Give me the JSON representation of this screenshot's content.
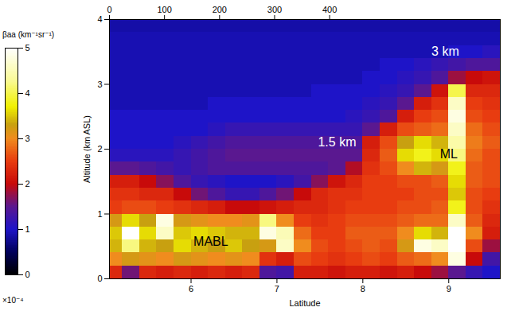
{
  "chart_data": {
    "type": "heatmap",
    "x_label": "Latitude",
    "y_label": "Altitude (km ASL)",
    "xlim": [
      5.05,
      9.6
    ],
    "xticks": [
      6,
      7,
      8,
      9
    ],
    "ylim": [
      0,
      4
    ],
    "yticks": [
      0,
      1,
      2,
      3,
      4
    ],
    "x2lim": [
      0,
      710
    ],
    "x2ticks": [
      0,
      100,
      200,
      300,
      400
    ],
    "x": [
      5.0,
      5.2,
      5.4,
      5.6,
      5.8,
      6.0,
      6.2,
      6.4,
      6.6,
      6.8,
      7.0,
      7.2,
      7.4,
      7.6,
      7.8,
      8.0,
      8.2,
      8.4,
      8.6,
      8.8,
      9.0,
      9.2,
      9.4,
      9.6
    ],
    "y": [
      0,
      0.2,
      0.4,
      0.6,
      0.8,
      1.0,
      1.2,
      1.4,
      1.6,
      1.8,
      2.0,
      2.2,
      2.4,
      2.6,
      2.8,
      3.0,
      3.2,
      3.4,
      3.6,
      3.8,
      4.0
    ],
    "values": [
      [
        2.3,
        1.6,
        2.3,
        2.2,
        2.3,
        2.2,
        2.3,
        2.2,
        2.3,
        1.4,
        1.3,
        2.2,
        2.2,
        2.1,
        2.2,
        2.2,
        2.1,
        2.2,
        2.0,
        1.8,
        1.5,
        1.2,
        1.0
      ],
      [
        3.0,
        3.2,
        3.1,
        3.0,
        3.2,
        3.1,
        3.0,
        3.1,
        3.0,
        2.4,
        2.2,
        2.6,
        2.5,
        2.4,
        2.5,
        2.6,
        2.5,
        2.7,
        2.8,
        3.0,
        4.8,
        2.0,
        1.3
      ],
      [
        3.4,
        4.2,
        3.4,
        3.3,
        3.6,
        3.4,
        3.3,
        3.5,
        3.3,
        3.2,
        4.6,
        3.0,
        2.6,
        2.5,
        2.6,
        2.7,
        2.6,
        3.2,
        4.8,
        4.6,
        5.0,
        2.6,
        1.8
      ],
      [
        3.5,
        5.0,
        3.6,
        4.6,
        3.5,
        3.6,
        3.5,
        3.4,
        3.4,
        4.8,
        4.5,
        2.8,
        2.5,
        2.5,
        2.7,
        2.7,
        2.7,
        3.0,
        3.6,
        3.4,
        5.0,
        3.0,
        2.2
      ],
      [
        3.2,
        3.6,
        3.3,
        4.8,
        3.2,
        3.1,
        3.0,
        3.0,
        3.1,
        4.2,
        3.0,
        2.5,
        2.4,
        2.5,
        2.6,
        2.6,
        2.6,
        2.7,
        2.8,
        2.8,
        4.6,
        2.7,
        2.3
      ],
      [
        2.5,
        2.6,
        2.6,
        2.5,
        2.4,
        2.3,
        2.2,
        2.0,
        2.0,
        2.1,
        2.2,
        2.3,
        2.3,
        2.4,
        2.5,
        2.5,
        2.5,
        2.6,
        2.6,
        2.7,
        3.8,
        2.6,
        2.4
      ],
      [
        2.4,
        2.4,
        2.3,
        2.3,
        2.0,
        1.6,
        1.4,
        1.2,
        1.2,
        1.4,
        1.6,
        2.0,
        2.3,
        2.4,
        2.4,
        2.5,
        2.5,
        2.5,
        2.6,
        2.6,
        3.5,
        2.6,
        2.5
      ],
      [
        2.2,
        2.2,
        2.0,
        1.7,
        1.4,
        1.2,
        1.1,
        1.0,
        1.0,
        1.0,
        1.1,
        1.3,
        1.7,
        2.1,
        2.3,
        2.5,
        2.5,
        2.6,
        2.6,
        2.7,
        3.6,
        2.7,
        2.6
      ],
      [
        1.5,
        1.5,
        1.4,
        1.3,
        1.2,
        1.3,
        1.4,
        1.4,
        1.4,
        1.4,
        1.4,
        1.4,
        1.4,
        1.5,
        1.9,
        2.4,
        2.6,
        3.0,
        3.4,
        3.2,
        3.8,
        2.7,
        2.6
      ],
      [
        1.1,
        1.1,
        1.1,
        1.1,
        1.2,
        1.3,
        1.4,
        1.5,
        1.5,
        1.5,
        1.5,
        1.5,
        1.5,
        1.5,
        1.5,
        2.3,
        2.7,
        3.6,
        3.8,
        3.6,
        4.2,
        2.8,
        2.6
      ],
      [
        1.0,
        1.0,
        1.0,
        1.0,
        1.1,
        1.2,
        1.3,
        1.4,
        1.4,
        1.4,
        1.4,
        1.4,
        1.4,
        1.4,
        1.4,
        2.2,
        2.6,
        3.3,
        3.6,
        3.4,
        4.4,
        2.9,
        2.7
      ],
      [
        1.0,
        1.0,
        1.0,
        1.0,
        1.0,
        1.0,
        1.1,
        1.2,
        1.2,
        1.2,
        1.2,
        1.2,
        1.2,
        1.2,
        1.2,
        1.5,
        2.2,
        2.6,
        2.7,
        2.8,
        4.6,
        2.8,
        2.6
      ],
      [
        1.0,
        1.0,
        1.0,
        1.0,
        1.0,
        1.0,
        1.0,
        1.0,
        1.0,
        1.0,
        1.0,
        1.0,
        1.0,
        1.0,
        1.1,
        1.2,
        1.4,
        2.2,
        2.5,
        2.6,
        4.8,
        2.6,
        2.5
      ],
      [
        0.9,
        0.9,
        0.9,
        0.9,
        0.9,
        0.9,
        1.0,
        1.0,
        1.0,
        1.0,
        1.0,
        1.0,
        1.0,
        1.0,
        1.0,
        1.1,
        1.2,
        1.5,
        2.2,
        2.4,
        4.6,
        2.5,
        2.4
      ],
      [
        0.9,
        0.9,
        0.9,
        0.9,
        0.9,
        0.9,
        0.9,
        0.9,
        0.9,
        0.9,
        0.9,
        0.9,
        1.0,
        1.0,
        1.0,
        1.0,
        1.1,
        1.2,
        1.5,
        2.1,
        4.0,
        2.3,
        2.3
      ],
      [
        0.9,
        0.9,
        0.9,
        0.9,
        0.9,
        0.9,
        0.9,
        0.9,
        0.9,
        0.9,
        0.9,
        0.9,
        0.9,
        0.9,
        0.9,
        1.0,
        1.0,
        1.1,
        1.2,
        1.4,
        1.8,
        2.0,
        2.1
      ],
      [
        0.9,
        0.9,
        0.9,
        0.9,
        0.9,
        0.9,
        0.9,
        0.9,
        0.9,
        0.9,
        0.9,
        0.9,
        0.9,
        0.9,
        0.9,
        0.9,
        1.0,
        1.0,
        1.1,
        1.2,
        1.3,
        1.4,
        1.4
      ],
      [
        0.9,
        0.9,
        0.9,
        0.9,
        0.9,
        0.9,
        0.9,
        0.9,
        0.9,
        0.9,
        0.9,
        0.9,
        0.9,
        0.9,
        0.9,
        0.9,
        0.9,
        0.9,
        0.9,
        0.9,
        1.0,
        1.0,
        1.1
      ],
      [
        0.9,
        0.9,
        0.9,
        0.9,
        0.9,
        0.9,
        0.9,
        0.9,
        0.9,
        0.9,
        0.9,
        0.9,
        0.9,
        0.9,
        0.9,
        0.9,
        0.9,
        0.9,
        0.9,
        0.9,
        0.9,
        0.9,
        0.9
      ],
      [
        0.85,
        0.85,
        0.85,
        0.85,
        0.85,
        0.85,
        0.85,
        0.85,
        0.85,
        0.85,
        0.85,
        0.85,
        0.85,
        0.85,
        0.85,
        0.85,
        0.85,
        0.85,
        0.85,
        0.85,
        0.85,
        0.85,
        0.85
      ]
    ],
    "colorbar": {
      "label": "βaa (km⁻¹sr⁻¹)",
      "range": [
        0,
        5
      ],
      "ticks": [
        0,
        1,
        2,
        3,
        4,
        5
      ],
      "multiplier": "×10⁻⁴"
    },
    "annotations": [
      {
        "text": "MABL",
        "x": 6.23,
        "y": 0.57,
        "color": "#000000"
      },
      {
        "text": "ML",
        "x": 9.0,
        "y": 1.92,
        "color": "#000000"
      },
      {
        "text": "1.5 km",
        "x": 7.7,
        "y": 2.1,
        "color": "#ffffff"
      },
      {
        "text": "3 km",
        "x": 8.96,
        "y": 3.5,
        "color": "#ffffff"
      }
    ]
  }
}
